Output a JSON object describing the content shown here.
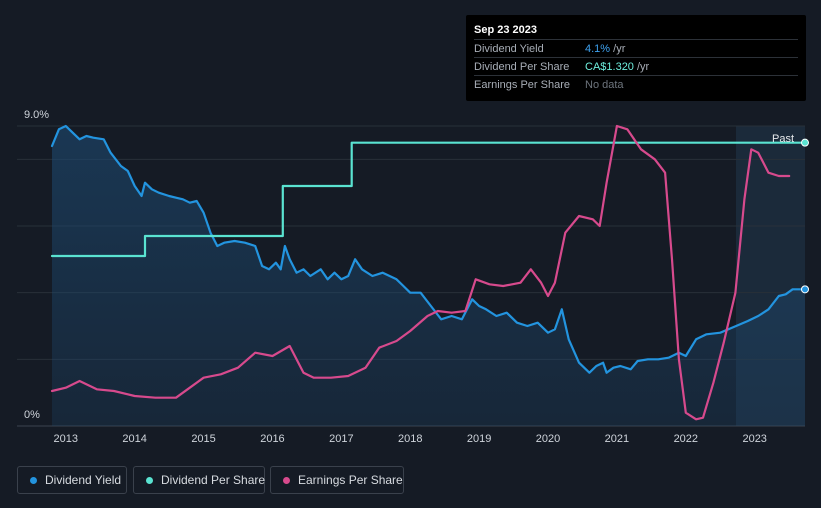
{
  "tooltip": {
    "date": "Sep 23 2023",
    "rows": [
      {
        "label": "Dividend Yield",
        "value": "4.1%",
        "unit": " /yr",
        "color": "#3ea2f0"
      },
      {
        "label": "Dividend Per Share",
        "value": "CA$1.320",
        "unit": " /yr",
        "color": "#6ff0df"
      },
      {
        "label": "Earnings Per Share",
        "value": "No data",
        "unit": "",
        "color": "#6e757e"
      }
    ]
  },
  "past_label": "Past",
  "legend": [
    {
      "label": "Dividend Yield",
      "color": "#2394df"
    },
    {
      "label": "Dividend Per Share",
      "color": "#5ae3d1"
    },
    {
      "label": "Earnings Per Share",
      "color": "#d74a8d"
    }
  ],
  "chart_data": {
    "type": "line",
    "title": "",
    "xlabel": "",
    "ylabel": "",
    "y_tick_labels": [
      "9.0%",
      "0%"
    ],
    "ylim": [
      0,
      9
    ],
    "xlim": [
      2012.8,
      2023.73
    ],
    "x_ticks": [
      2013,
      2014,
      2015,
      2016,
      2017,
      2018,
      2019,
      2020,
      2021,
      2022,
      2023
    ],
    "x_tick_labels": [
      "2013",
      "2014",
      "2015",
      "2016",
      "2017",
      "2018",
      "2019",
      "2020",
      "2021",
      "2022",
      "2023"
    ],
    "forecast_start": 2022.73,
    "series": [
      {
        "name": "Dividend Yield",
        "unit": "%",
        "color": "#2394df",
        "area": true,
        "points": [
          [
            2012.8,
            8.4
          ],
          [
            2012.9,
            8.9
          ],
          [
            2013.0,
            9.0
          ],
          [
            2013.1,
            8.8
          ],
          [
            2013.2,
            8.6
          ],
          [
            2013.3,
            8.7
          ],
          [
            2013.4,
            8.65
          ],
          [
            2013.55,
            8.6
          ],
          [
            2013.65,
            8.2
          ],
          [
            2013.8,
            7.8
          ],
          [
            2013.9,
            7.65
          ],
          [
            2014.0,
            7.2
          ],
          [
            2014.1,
            6.9
          ],
          [
            2014.15,
            7.3
          ],
          [
            2014.25,
            7.1
          ],
          [
            2014.35,
            7.0
          ],
          [
            2014.5,
            6.9
          ],
          [
            2014.6,
            6.85
          ],
          [
            2014.7,
            6.8
          ],
          [
            2014.8,
            6.7
          ],
          [
            2014.9,
            6.75
          ],
          [
            2015.0,
            6.4
          ],
          [
            2015.1,
            5.8
          ],
          [
            2015.2,
            5.4
          ],
          [
            2015.3,
            5.5
          ],
          [
            2015.45,
            5.55
          ],
          [
            2015.6,
            5.5
          ],
          [
            2015.75,
            5.4
          ],
          [
            2015.85,
            4.8
          ],
          [
            2015.95,
            4.7
          ],
          [
            2016.05,
            4.9
          ],
          [
            2016.12,
            4.7
          ],
          [
            2016.18,
            5.4
          ],
          [
            2016.25,
            5.0
          ],
          [
            2016.35,
            4.6
          ],
          [
            2016.45,
            4.7
          ],
          [
            2016.55,
            4.5
          ],
          [
            2016.7,
            4.7
          ],
          [
            2016.8,
            4.4
          ],
          [
            2016.9,
            4.6
          ],
          [
            2017.0,
            4.4
          ],
          [
            2017.1,
            4.5
          ],
          [
            2017.2,
            5.0
          ],
          [
            2017.3,
            4.7
          ],
          [
            2017.45,
            4.5
          ],
          [
            2017.6,
            4.6
          ],
          [
            2017.7,
            4.5
          ],
          [
            2017.8,
            4.4
          ],
          [
            2017.9,
            4.2
          ],
          [
            2018.0,
            4.0
          ],
          [
            2018.15,
            4.0
          ],
          [
            2018.3,
            3.6
          ],
          [
            2018.45,
            3.2
          ],
          [
            2018.6,
            3.3
          ],
          [
            2018.75,
            3.2
          ],
          [
            2018.9,
            3.8
          ],
          [
            2019.0,
            3.6
          ],
          [
            2019.1,
            3.5
          ],
          [
            2019.25,
            3.3
          ],
          [
            2019.4,
            3.4
          ],
          [
            2019.55,
            3.1
          ],
          [
            2019.7,
            3.0
          ],
          [
            2019.85,
            3.1
          ],
          [
            2020.0,
            2.8
          ],
          [
            2020.1,
            2.9
          ],
          [
            2020.2,
            3.5
          ],
          [
            2020.3,
            2.6
          ],
          [
            2020.45,
            1.9
          ],
          [
            2020.6,
            1.6
          ],
          [
            2020.7,
            1.8
          ],
          [
            2020.8,
            1.9
          ],
          [
            2020.85,
            1.6
          ],
          [
            2020.95,
            1.75
          ],
          [
            2021.05,
            1.8
          ],
          [
            2021.2,
            1.7
          ],
          [
            2021.3,
            1.95
          ],
          [
            2021.45,
            2.0
          ],
          [
            2021.6,
            2.0
          ],
          [
            2021.75,
            2.05
          ],
          [
            2021.9,
            2.2
          ],
          [
            2022.0,
            2.1
          ],
          [
            2022.15,
            2.6
          ],
          [
            2022.3,
            2.75
          ],
          [
            2022.5,
            2.8
          ],
          [
            2022.73,
            3.0
          ],
          [
            2022.9,
            3.15
          ],
          [
            2023.05,
            3.3
          ],
          [
            2023.2,
            3.5
          ],
          [
            2023.35,
            3.9
          ],
          [
            2023.45,
            3.95
          ],
          [
            2023.55,
            4.1
          ],
          [
            2023.65,
            4.1
          ],
          [
            2023.73,
            4.1
          ]
        ]
      },
      {
        "name": "Dividend Per Share",
        "unit": "CA$",
        "color": "#5ae3d1",
        "area": false,
        "points": [
          [
            2012.8,
            5.1
          ],
          [
            2014.15,
            5.1
          ],
          [
            2014.15,
            5.7
          ],
          [
            2016.15,
            5.7
          ],
          [
            2016.15,
            7.2
          ],
          [
            2017.15,
            7.2
          ],
          [
            2017.15,
            8.5
          ],
          [
            2023.73,
            8.5
          ]
        ]
      },
      {
        "name": "Earnings Per Share",
        "unit": "CA$",
        "color": "#d74a8d",
        "area": false,
        "points": [
          [
            2012.8,
            1.05
          ],
          [
            2013.0,
            1.15
          ],
          [
            2013.2,
            1.35
          ],
          [
            2013.45,
            1.1
          ],
          [
            2013.7,
            1.05
          ],
          [
            2014.0,
            0.9
          ],
          [
            2014.3,
            0.85
          ],
          [
            2014.6,
            0.85
          ],
          [
            2014.8,
            1.15
          ],
          [
            2015.0,
            1.45
          ],
          [
            2015.25,
            1.55
          ],
          [
            2015.5,
            1.75
          ],
          [
            2015.75,
            2.2
          ],
          [
            2016.0,
            2.1
          ],
          [
            2016.25,
            2.4
          ],
          [
            2016.45,
            1.6
          ],
          [
            2016.6,
            1.45
          ],
          [
            2016.85,
            1.45
          ],
          [
            2017.1,
            1.5
          ],
          [
            2017.35,
            1.75
          ],
          [
            2017.55,
            2.35
          ],
          [
            2017.8,
            2.55
          ],
          [
            2018.0,
            2.85
          ],
          [
            2018.25,
            3.3
          ],
          [
            2018.4,
            3.45
          ],
          [
            2018.6,
            3.4
          ],
          [
            2018.8,
            3.45
          ],
          [
            2018.95,
            4.4
          ],
          [
            2019.15,
            4.25
          ],
          [
            2019.35,
            4.2
          ],
          [
            2019.6,
            4.3
          ],
          [
            2019.75,
            4.7
          ],
          [
            2019.9,
            4.3
          ],
          [
            2020.0,
            3.9
          ],
          [
            2020.1,
            4.3
          ],
          [
            2020.25,
            5.8
          ],
          [
            2020.45,
            6.3
          ],
          [
            2020.65,
            6.2
          ],
          [
            2020.75,
            6.0
          ],
          [
            2020.85,
            7.3
          ],
          [
            2021.0,
            9.0
          ],
          [
            2021.15,
            8.9
          ],
          [
            2021.35,
            8.3
          ],
          [
            2021.55,
            8.0
          ],
          [
            2021.7,
            7.6
          ],
          [
            2021.8,
            5.0
          ],
          [
            2021.9,
            2.0
          ],
          [
            2022.0,
            0.4
          ],
          [
            2022.15,
            0.2
          ],
          [
            2022.25,
            0.25
          ],
          [
            2022.4,
            1.3
          ],
          [
            2022.55,
            2.5
          ],
          [
            2022.72,
            4.0
          ],
          [
            2022.85,
            6.8
          ],
          [
            2022.95,
            8.3
          ],
          [
            2023.05,
            8.2
          ],
          [
            2023.2,
            7.6
          ],
          [
            2023.35,
            7.5
          ],
          [
            2023.5,
            7.5
          ]
        ]
      }
    ]
  }
}
